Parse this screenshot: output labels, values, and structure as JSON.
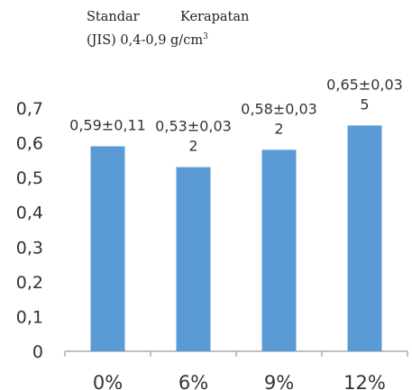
{
  "note": {
    "line1_word1": "Standar",
    "line1_word2": "Kerapatan",
    "line2": "(JIS) 0,4-0,9 g/cm",
    "line2_sup": "3"
  },
  "chart_data": {
    "type": "bar",
    "categories": [
      "0%",
      "6%",
      "9%",
      "12%"
    ],
    "values": [
      0.59,
      0.53,
      0.58,
      0.65
    ],
    "data_labels": [
      [
        "0,59±0,11"
      ],
      [
        "0,53±0,03",
        "2"
      ],
      [
        "0,58±0,03",
        "2"
      ],
      [
        "0,65±0,03",
        "5"
      ]
    ],
    "yticks": [
      "0",
      "0,1",
      "0,2",
      "0,3",
      "0,4",
      "0,5",
      "0,6",
      "0,7"
    ],
    "ylim": [
      0,
      0.7
    ],
    "bar_color": "#5b9bd5",
    "grid": false,
    "title": "",
    "xlabel": "",
    "ylabel": ""
  }
}
